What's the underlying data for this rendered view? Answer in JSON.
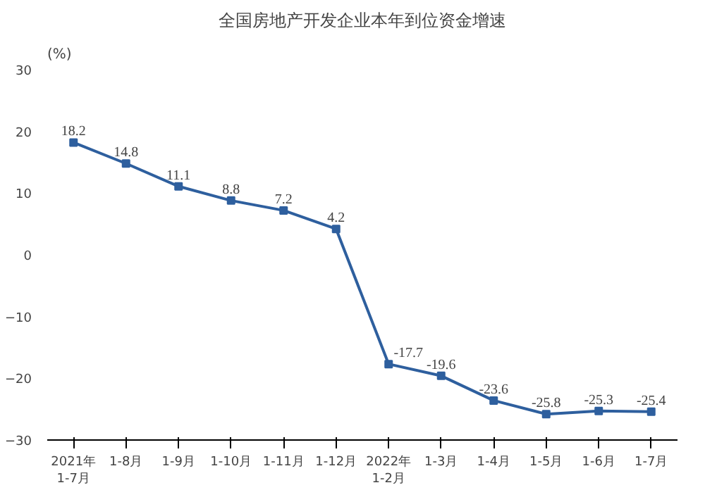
{
  "chart_data": {
    "type": "line",
    "title": "全国房地产开发企业本年到位资金增速",
    "ylabel": "(%)",
    "categories": [
      "2021年\n1-7月",
      "1-8月",
      "1-9月",
      "1-10月",
      "1-11月",
      "1-12月",
      "2022年\n1-2月",
      "1-3月",
      "1-4月",
      "1-5月",
      "1-6月",
      "1-7月"
    ],
    "series": [
      {
        "color": "#2e5f9e",
        "values": [
          18.2,
          14.8,
          11.1,
          8.8,
          7.2,
          4.2,
          -17.7,
          -19.6,
          -23.6,
          -25.8,
          -25.3,
          -25.4
        ]
      }
    ],
    "ylim": [
      -30,
      30
    ],
    "yticks": [
      -30,
      -20,
      -10,
      0,
      10,
      20,
      30
    ],
    "marker": "square",
    "data_labels": true,
    "grid": false
  }
}
